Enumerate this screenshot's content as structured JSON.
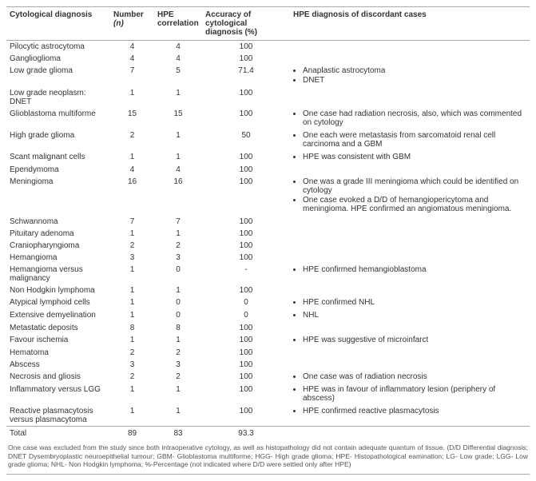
{
  "headers": {
    "diag": "Cytological diagnosis",
    "num_line1": "Number",
    "num_line2": "(n)",
    "hpe_line1": "HPE",
    "hpe_line2": "correlation",
    "acc_line1": "Accuracy of cytological",
    "acc_line2": "diagnosis (%)",
    "notes": "HPE diagnosis of discordant cases"
  },
  "rows": [
    {
      "diag": "Pilocytic astrocytoma",
      "n": "4",
      "hpe": "4",
      "acc": "100",
      "notes": []
    },
    {
      "diag": "Ganglioglioma",
      "n": "4",
      "hpe": "4",
      "acc": "100",
      "notes": []
    },
    {
      "diag": "Low grade glioma",
      "n": "7",
      "hpe": "5",
      "acc": "71.4",
      "notes": [
        "Anaplastic astrocytoma",
        "DNET"
      ]
    },
    {
      "diag": "Low grade neoplasm: DNET",
      "n": "1",
      "hpe": "1",
      "acc": "100",
      "notes": []
    },
    {
      "diag": "Glioblastoma multiforme",
      "n": "15",
      "hpe": "15",
      "acc": "100",
      "notes": [
        "One case had radiation necrosis, also, which was commented on cytology"
      ]
    },
    {
      "diag": "High grade glioma",
      "n": "2",
      "hpe": "1",
      "acc": "50",
      "notes": [
        "One each were metastasis from sarcomatoid renal cell carcinoma and a GBM"
      ]
    },
    {
      "diag": "Scant malignant cells",
      "n": "1",
      "hpe": "1",
      "acc": "100",
      "notes": [
        "HPE was consistent with GBM"
      ]
    },
    {
      "diag": "Ependymoma",
      "n": "4",
      "hpe": "4",
      "acc": "100",
      "notes": []
    },
    {
      "diag": "Meningioma",
      "n": "16",
      "hpe": "16",
      "acc": "100",
      "notes": [
        "One was a grade III meningioma which could be identified on cytology",
        "One case evoked a D/D of hemangiopericytoma and meningioma. HPE confirmed an angiomatous meningioma."
      ]
    },
    {
      "diag": "Schwannoma",
      "n": "7",
      "hpe": "7",
      "acc": "100",
      "notes": []
    },
    {
      "diag": "Pituitary adenoma",
      "n": "1",
      "hpe": "1",
      "acc": "100",
      "notes": []
    },
    {
      "diag": "Craniopharyngioma",
      "n": "2",
      "hpe": "2",
      "acc": "100",
      "notes": []
    },
    {
      "diag": "Hemangioma",
      "n": "3",
      "hpe": "3",
      "acc": "100",
      "notes": []
    },
    {
      "diag": "Hemangioma versus malignancy",
      "n": "1",
      "hpe": "0",
      "acc": "-",
      "notes": [
        "HPE confirmed hemangioblastoma"
      ]
    },
    {
      "diag": "Non Hodgkin lymphoma",
      "n": "1",
      "hpe": "1",
      "acc": "100",
      "notes": []
    },
    {
      "diag": "Atypical lymphoid cells",
      "n": "1",
      "hpe": "0",
      "acc": "0",
      "notes": [
        "HPE confirmed NHL"
      ]
    },
    {
      "diag": "Extensive demyelination",
      "n": "1",
      "hpe": "0",
      "acc": "0",
      "notes": [
        "NHL"
      ]
    },
    {
      "diag": "Metastatic deposits",
      "n": "8",
      "hpe": "8",
      "acc": "100",
      "notes": []
    },
    {
      "diag": "Favour ischemia",
      "n": "1",
      "hpe": "1",
      "acc": "100",
      "notes": [
        "HPE was suggestive of microinfarct"
      ]
    },
    {
      "diag": "Hematoma",
      "n": "2",
      "hpe": "2",
      "acc": "100",
      "notes": []
    },
    {
      "diag": "Abscess",
      "n": "3",
      "hpe": "3",
      "acc": "100",
      "notes": []
    },
    {
      "diag": "Necrosis and gliosis",
      "n": "2",
      "hpe": "2",
      "acc": "100",
      "notes": [
        "One case was of radiation necrosis"
      ]
    },
    {
      "diag": "Inflammatory versus LGG",
      "n": "1",
      "hpe": "1",
      "acc": "100",
      "notes": [
        "HPE was in favour of inflammatory lesion (periphery of abscess)"
      ]
    },
    {
      "diag": "Reactive plasmacytosis versus plasmacytoma",
      "n": "1",
      "hpe": "1",
      "acc": "100",
      "notes": [
        "HPE confirmed reactive plasmacytosis"
      ]
    }
  ],
  "total": {
    "label": "Total",
    "n": "89",
    "hpe": "83",
    "acc": "93.3"
  },
  "footnote": "One case was excluded from the study since both intraoperative cytology, as well as histopathology did not contain adequate quantum of tissue. (D/D Differential diagnosis; DNET Dysembryoplastic neuroepithelial tumour; GBM- Glioblastoma multiforme; HGG- High grade glioma; HPE- Histopathological eamination; LG- Low grade; LGG- Low grade glioma; NHL- Non Hodgkin lymphoma; %-Percentage (not indicated where D/D were settled only after HPE)"
}
